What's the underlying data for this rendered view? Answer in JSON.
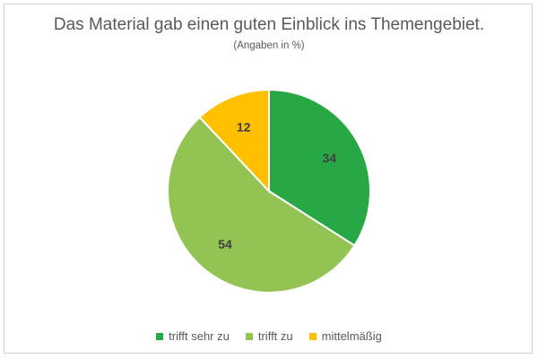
{
  "chart_data": {
    "type": "pie",
    "title": "Das Material gab einen guten Einblick ins Themengebiet.",
    "subtitle": "(Angaben in %)",
    "categories": [
      "trifft sehr zu",
      "trifft zu",
      "mittelmäßig"
    ],
    "values": [
      34,
      54,
      12
    ],
    "colors": [
      "#28a745",
      "#92c353",
      "#ffc000"
    ],
    "data_labels": [
      "34",
      "54",
      "12"
    ],
    "legend_position": "bottom",
    "start_angle": "12 o'clock",
    "direction": "clockwise"
  }
}
